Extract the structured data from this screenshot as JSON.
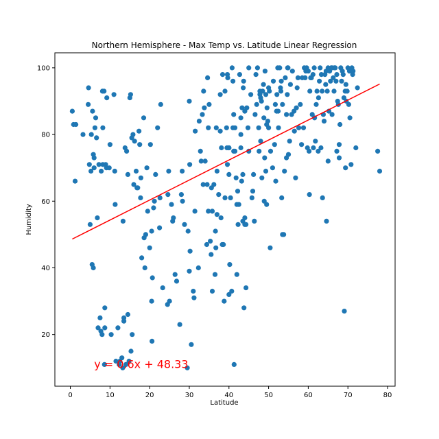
{
  "chart_data": {
    "type": "scatter",
    "title": "Northern Hemisphere - Max Temp vs. Latitude Linear Regression",
    "xlabel": "Latitude",
    "ylabel": "Humidity",
    "xlim": [
      -3.9,
      81.9
    ],
    "ylim": [
      4.5,
      104.5
    ],
    "xticks": [
      0,
      10,
      20,
      30,
      40,
      50,
      60,
      70,
      80
    ],
    "yticks": [
      20,
      40,
      60,
      80,
      100
    ],
    "grid": false,
    "point_color": "#1f77b4",
    "line_color": "#ff0000",
    "regression": {
      "slope": 0.6,
      "intercept": 48.33,
      "x_start": 0.5,
      "x_end": 78.0
    },
    "annotation": {
      "text": "y = 0.6x + 48.33",
      "x": 6,
      "y": 10
    },
    "points": [
      [
        0.5,
        87
      ],
      [
        0.8,
        83
      ],
      [
        1.2,
        66
      ],
      [
        1.4,
        83
      ],
      [
        3.2,
        80
      ],
      [
        4.5,
        89
      ],
      [
        4.6,
        94
      ],
      [
        4.8,
        71
      ],
      [
        5.0,
        53
      ],
      [
        5.2,
        69
      ],
      [
        5.3,
        80
      ],
      [
        5.5,
        41
      ],
      [
        5.6,
        87
      ],
      [
        5.8,
        74
      ],
      [
        5.8,
        40
      ],
      [
        6.0,
        73
      ],
      [
        6.0,
        70
      ],
      [
        6.2,
        82
      ],
      [
        6.4,
        85
      ],
      [
        6.6,
        79
      ],
      [
        6.8,
        55
      ],
      [
        7.0,
        22
      ],
      [
        7.2,
        71
      ],
      [
        7.5,
        25
      ],
      [
        7.7,
        21
      ],
      [
        7.8,
        69
      ],
      [
        8.0,
        20
      ],
      [
        8.1,
        93
      ],
      [
        8.2,
        82
      ],
      [
        8.2,
        71
      ],
      [
        8.5,
        93
      ],
      [
        8.6,
        11
      ],
      [
        8.7,
        28
      ],
      [
        8.7,
        22
      ],
      [
        8.9,
        71
      ],
      [
        9.1,
        70
      ],
      [
        9.2,
        91
      ],
      [
        9.8,
        70
      ],
      [
        10.0,
        77
      ],
      [
        10.3,
        20
      ],
      [
        11.0,
        92
      ],
      [
        11.2,
        69
      ],
      [
        11.3,
        59
      ],
      [
        11.5,
        12
      ],
      [
        12.0,
        22
      ],
      [
        12.3,
        11
      ],
      [
        12.5,
        12
      ],
      [
        13.0,
        13
      ],
      [
        13.2,
        10
      ],
      [
        13.3,
        54
      ],
      [
        13.5,
        25
      ],
      [
        13.5,
        24
      ],
      [
        13.8,
        76
      ],
      [
        14.0,
        11
      ],
      [
        14.2,
        75
      ],
      [
        14.5,
        68
      ],
      [
        14.5,
        26
      ],
      [
        14.8,
        12
      ],
      [
        15.0,
        91
      ],
      [
        15.2,
        92
      ],
      [
        15.3,
        15
      ],
      [
        15.6,
        20
      ],
      [
        15.5,
        79
      ],
      [
        15.8,
        80
      ],
      [
        16.0,
        65
      ],
      [
        16.2,
        78
      ],
      [
        16.6,
        69
      ],
      [
        16.8,
        64
      ],
      [
        17.0,
        64
      ],
      [
        17.3,
        81
      ],
      [
        17.5,
        77
      ],
      [
        17.7,
        61
      ],
      [
        17.8,
        67
      ],
      [
        18.0,
        43
      ],
      [
        18.5,
        85
      ],
      [
        18.6,
        49
      ],
      [
        18.8,
        40
      ],
      [
        19.0,
        50
      ],
      [
        19.3,
        70
      ],
      [
        19.5,
        57
      ],
      [
        20.0,
        46
      ],
      [
        20.2,
        77
      ],
      [
        20.5,
        30
      ],
      [
        20.5,
        51
      ],
      [
        20.6,
        18
      ],
      [
        20.7,
        37
      ],
      [
        21.0,
        58
      ],
      [
        21.2,
        60
      ],
      [
        21.5,
        68
      ],
      [
        22.0,
        82
      ],
      [
        22.5,
        52
      ],
      [
        22.6,
        61
      ],
      [
        22.8,
        89
      ],
      [
        23.3,
        34
      ],
      [
        24.5,
        29
      ],
      [
        24.6,
        62
      ],
      [
        24.8,
        69
      ],
      [
        25.0,
        30
      ],
      [
        25.5,
        59
      ],
      [
        25.8,
        54
      ],
      [
        26.0,
        55
      ],
      [
        26.4,
        38
      ],
      [
        26.8,
        36
      ],
      [
        27.6,
        23
      ],
      [
        28.0,
        62
      ],
      [
        28.2,
        69
      ],
      [
        28.3,
        60
      ],
      [
        28.8,
        53
      ],
      [
        29.5,
        10
      ],
      [
        29.7,
        51
      ],
      [
        30.0,
        39
      ],
      [
        30.0,
        90
      ],
      [
        30.1,
        71
      ],
      [
        30.2,
        45
      ],
      [
        30.5,
        17
      ],
      [
        31.0,
        33
      ],
      [
        31.2,
        31
      ],
      [
        31.4,
        57
      ],
      [
        31.5,
        81
      ],
      [
        32.3,
        40
      ],
      [
        32.5,
        84
      ],
      [
        32.8,
        75
      ],
      [
        33.0,
        72
      ],
      [
        33.3,
        86
      ],
      [
        33.5,
        65
      ],
      [
        33.6,
        93
      ],
      [
        33.8,
        88
      ],
      [
        34.0,
        72
      ],
      [
        34.4,
        47
      ],
      [
        34.5,
        65
      ],
      [
        34.6,
        97
      ],
      [
        34.8,
        82
      ],
      [
        34.8,
        57
      ],
      [
        35.0,
        89
      ],
      [
        35.3,
        48
      ],
      [
        35.5,
        44
      ],
      [
        35.6,
        64
      ],
      [
        35.8,
        33
      ],
      [
        35.8,
        57
      ],
      [
        36.2,
        65
      ],
      [
        36.5,
        38
      ],
      [
        36.6,
        51
      ],
      [
        36.7,
        46
      ],
      [
        36.8,
        82
      ],
      [
        37.0,
        69
      ],
      [
        37.0,
        56
      ],
      [
        37.4,
        62
      ],
      [
        37.8,
        81
      ],
      [
        37.8,
        92
      ],
      [
        38.0,
        55
      ],
      [
        38.1,
        76
      ],
      [
        38.3,
        47
      ],
      [
        38.4,
        98
      ],
      [
        38.6,
        47
      ],
      [
        38.8,
        30
      ],
      [
        39.0,
        93
      ],
      [
        39.0,
        61
      ],
      [
        39.4,
        82
      ],
      [
        39.5,
        76
      ],
      [
        39.6,
        98
      ],
      [
        39.7,
        97
      ],
      [
        39.6,
        71
      ],
      [
        40.0,
        76
      ],
      [
        40.0,
        68
      ],
      [
        40.0,
        32
      ],
      [
        40.0,
        76
      ],
      [
        40.2,
        41
      ],
      [
        40.4,
        61
      ],
      [
        40.7,
        33
      ],
      [
        40.8,
        100
      ],
      [
        41.0,
        96
      ],
      [
        41.0,
        82
      ],
      [
        41.2,
        86
      ],
      [
        41.2,
        75
      ],
      [
        41.3,
        11
      ],
      [
        41.5,
        75
      ],
      [
        41.5,
        82
      ],
      [
        41.8,
        67
      ],
      [
        42.0,
        38
      ],
      [
        42.0,
        59
      ],
      [
        42.2,
        63
      ],
      [
        42.3,
        53
      ],
      [
        42.5,
        59
      ],
      [
        42.7,
        98
      ],
      [
        43.0,
        80
      ],
      [
        43.0,
        76
      ],
      [
        43.0,
        85
      ],
      [
        43.2,
        66
      ],
      [
        43.3,
        88
      ],
      [
        43.5,
        68
      ],
      [
        43.5,
        54
      ],
      [
        43.6,
        94
      ],
      [
        43.7,
        96
      ],
      [
        43.8,
        28
      ],
      [
        44.0,
        53
      ],
      [
        44.0,
        55
      ],
      [
        44.0,
        87
      ],
      [
        44.3,
        34
      ],
      [
        44.3,
        53
      ],
      [
        44.5,
        88
      ],
      [
        44.8,
        82
      ],
      [
        45.0,
        100
      ],
      [
        45.0,
        75
      ],
      [
        45.5,
        92
      ],
      [
        45.8,
        61
      ],
      [
        46.0,
        63
      ],
      [
        46.2,
        68
      ],
      [
        46.4,
        54
      ],
      [
        46.6,
        86
      ],
      [
        46.8,
        98
      ],
      [
        47.0,
        89
      ],
      [
        47.2,
        100
      ],
      [
        47.5,
        82
      ],
      [
        47.6,
        75
      ],
      [
        47.8,
        93
      ],
      [
        47.8,
        92
      ],
      [
        48.0,
        91
      ],
      [
        48.0,
        78
      ],
      [
        48.2,
        90
      ],
      [
        48.3,
        67
      ],
      [
        48.5,
        93
      ],
      [
        48.7,
        95
      ],
      [
        48.8,
        85
      ],
      [
        48.9,
        60
      ],
      [
        49.0,
        73
      ],
      [
        49.1,
        99
      ],
      [
        49.3,
        92
      ],
      [
        49.3,
        69
      ],
      [
        49.5,
        83
      ],
      [
        49.5,
        59
      ],
      [
        49.6,
        88
      ],
      [
        49.8,
        84
      ],
      [
        50.0,
        94
      ],
      [
        50.0,
        82
      ],
      [
        50.2,
        93
      ],
      [
        50.4,
        46
      ],
      [
        50.5,
        75
      ],
      [
        51.0,
        70
      ],
      [
        51.2,
        96
      ],
      [
        51.5,
        77
      ],
      [
        51.7,
        89
      ],
      [
        51.8,
        66
      ],
      [
        52.0,
        87
      ],
      [
        52.1,
        92
      ],
      [
        52.3,
        100
      ],
      [
        52.4,
        87
      ],
      [
        52.5,
        82
      ],
      [
        52.8,
        100
      ],
      [
        53.0,
        94
      ],
      [
        53.1,
        93
      ],
      [
        53.2,
        96
      ],
      [
        53.3,
        61
      ],
      [
        53.5,
        89
      ],
      [
        53.5,
        50
      ],
      [
        53.8,
        50
      ],
      [
        54.0,
        69
      ],
      [
        54.2,
        97
      ],
      [
        54.5,
        86
      ],
      [
        54.5,
        73
      ],
      [
        54.7,
        92
      ],
      [
        54.8,
        100
      ],
      [
        54.9,
        100
      ],
      [
        55.0,
        74
      ],
      [
        55.3,
        78
      ],
      [
        55.5,
        95
      ],
      [
        55.8,
        86
      ],
      [
        56.0,
        99
      ],
      [
        56.4,
        87
      ],
      [
        56.5,
        81
      ],
      [
        56.8,
        67
      ],
      [
        57.0,
        88
      ],
      [
        57.2,
        94
      ],
      [
        57.4,
        97
      ],
      [
        57.6,
        82
      ],
      [
        58.0,
        89
      ],
      [
        58.3,
        77
      ],
      [
        58.5,
        97
      ],
      [
        58.8,
        82
      ],
      [
        59.0,
        100
      ],
      [
        59.2,
        97
      ],
      [
        59.4,
        99
      ],
      [
        59.6,
        100
      ],
      [
        59.8,
        76
      ],
      [
        60.0,
        99
      ],
      [
        60.2,
        75
      ],
      [
        60.3,
        62
      ],
      [
        60.4,
        93
      ],
      [
        60.6,
        97
      ],
      [
        60.8,
        97
      ],
      [
        61.0,
        86
      ],
      [
        61.2,
        98
      ],
      [
        61.3,
        76
      ],
      [
        61.5,
        100
      ],
      [
        61.6,
        85
      ],
      [
        61.8,
        78
      ],
      [
        62.0,
        89
      ],
      [
        62.2,
        93
      ],
      [
        62.5,
        75
      ],
      [
        62.6,
        91
      ],
      [
        62.8,
        96
      ],
      [
        63.0,
        100
      ],
      [
        63.2,
        76
      ],
      [
        63.3,
        98
      ],
      [
        63.5,
        93
      ],
      [
        63.6,
        61
      ],
      [
        63.8,
        86
      ],
      [
        64.0,
        84
      ],
      [
        64.2,
        98
      ],
      [
        64.4,
        95
      ],
      [
        64.5,
        99
      ],
      [
        64.6,
        54
      ],
      [
        64.8,
        93
      ],
      [
        65.0,
        72
      ],
      [
        65.0,
        100
      ],
      [
        65.2,
        87
      ],
      [
        65.4,
        99
      ],
      [
        65.6,
        96
      ],
      [
        65.8,
        100
      ],
      [
        66.0,
        100
      ],
      [
        66.0,
        86
      ],
      [
        66.3,
        97
      ],
      [
        66.5,
        93
      ],
      [
        66.6,
        100
      ],
      [
        66.8,
        100
      ],
      [
        67.0,
        96
      ],
      [
        67.2,
        98
      ],
      [
        67.2,
        75
      ],
      [
        67.4,
        90
      ],
      [
        67.6,
        89
      ],
      [
        67.8,
        73
      ],
      [
        67.8,
        77
      ],
      [
        68.0,
        83
      ],
      [
        68.2,
        100
      ],
      [
        68.4,
        96
      ],
      [
        68.6,
        99
      ],
      [
        68.8,
        98
      ],
      [
        69.0,
        91
      ],
      [
        69.1,
        27
      ],
      [
        69.3,
        93
      ],
      [
        69.4,
        70
      ],
      [
        69.5,
        95
      ],
      [
        69.6,
        90
      ],
      [
        69.8,
        93
      ],
      [
        70.0,
        100
      ],
      [
        70.2,
        89
      ],
      [
        70.4,
        99
      ],
      [
        70.5,
        85
      ],
      [
        70.8,
        71
      ],
      [
        71.0,
        100
      ],
      [
        71.2,
        98
      ],
      [
        71.3,
        99
      ],
      [
        72.0,
        76
      ],
      [
        72.4,
        94
      ],
      [
        77.5,
        75
      ],
      [
        78.0,
        69
      ]
    ]
  }
}
